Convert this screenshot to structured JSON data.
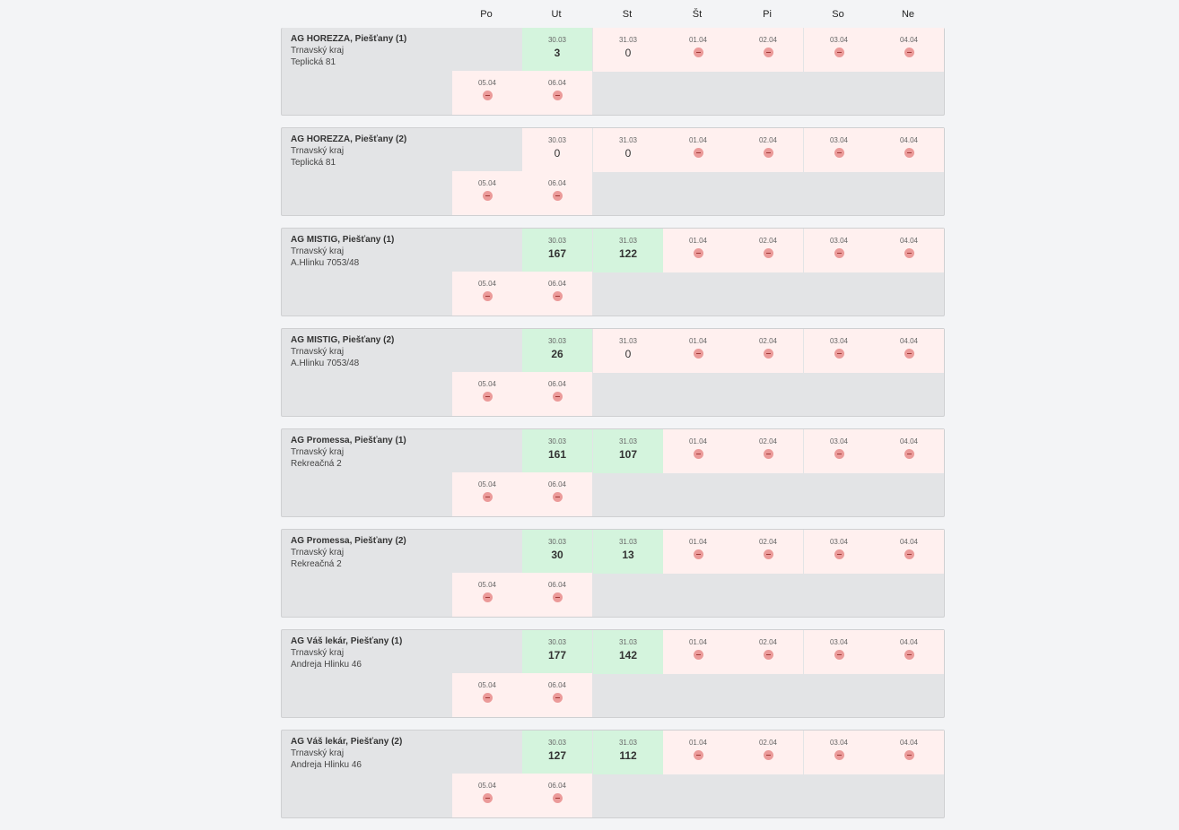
{
  "days": [
    "Po",
    "Ut",
    "St",
    "Št",
    "Pi",
    "So",
    "Ne"
  ],
  "week1_dates": [
    "30.03",
    "31.03",
    "01.04",
    "02.04",
    "03.04",
    "04.04"
  ],
  "week2_dates": [
    "05.04",
    "06.04"
  ],
  "blocked_icon": "no-entry-icon",
  "colors": {
    "available": "#d4f4dd",
    "unavailable": "#fff0ef",
    "card": "#e3e4e6",
    "blocked_icon": "#eb9a99"
  },
  "locations": [
    {
      "name": "AG HOREZZA, Piešťany (1)",
      "region": "Trnavský kraj",
      "address": "Teplická 81",
      "counts": [
        "3",
        "0"
      ],
      "available": [
        true,
        false
      ]
    },
    {
      "name": "AG HOREZZA, Piešťany (2)",
      "region": "Trnavský kraj",
      "address": "Teplická 81",
      "counts": [
        "0",
        "0"
      ],
      "available": [
        false,
        false
      ]
    },
    {
      "name": "AG MISTIG, Piešťany (1)",
      "region": "Trnavský kraj",
      "address": "A.Hlinku 7053/48",
      "counts": [
        "167",
        "122"
      ],
      "available": [
        true,
        true
      ]
    },
    {
      "name": "AG MISTIG, Piešťany (2)",
      "region": "Trnavský kraj",
      "address": "A.Hlinku 7053/48",
      "counts": [
        "26",
        "0"
      ],
      "available": [
        true,
        false
      ]
    },
    {
      "name": "AG Promessa, Piešťany (1)",
      "region": "Trnavský kraj",
      "address": "Rekreačná 2",
      "counts": [
        "161",
        "107"
      ],
      "available": [
        true,
        true
      ]
    },
    {
      "name": "AG Promessa, Piešťany (2)",
      "region": "Trnavský kraj",
      "address": "Rekreačná 2",
      "counts": [
        "30",
        "13"
      ],
      "available": [
        true,
        true
      ]
    },
    {
      "name": "AG Váš lekár, Piešťany (1)",
      "region": "Trnavský kraj",
      "address": "Andreja Hlinku 46",
      "counts": [
        "177",
        "142"
      ],
      "available": [
        true,
        true
      ]
    },
    {
      "name": "AG Váš lekár, Piešťany (2)",
      "region": "Trnavský kraj",
      "address": "Andreja Hlinku 46",
      "counts": [
        "127",
        "112"
      ],
      "available": [
        true,
        true
      ]
    }
  ]
}
